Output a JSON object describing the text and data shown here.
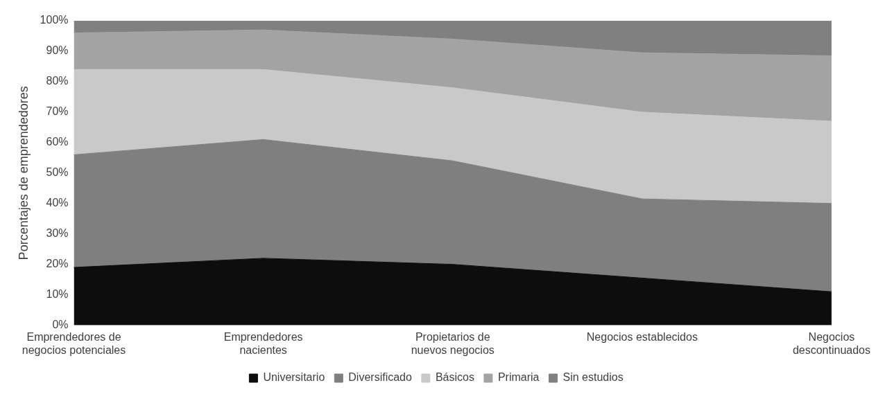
{
  "chart_data": {
    "type": "area",
    "stacked": true,
    "ylabel": "Porcentajes de emprendedores",
    "categories": [
      "Emprendedores de negocios potenciales",
      "Emprendedores nacientes",
      "Propietarios de nuevos negocios",
      "Negocios establecidos",
      "Negocios descontinuados"
    ],
    "series": [
      {
        "name": "Universitario",
        "color": "#0d0d0d",
        "values": [
          19,
          22,
          20,
          15.5,
          11
        ]
      },
      {
        "name": "Diversificado",
        "color": "#7f7f7f",
        "values": [
          37,
          39,
          34,
          26,
          29
        ]
      },
      {
        "name": "Básicos",
        "color": "#c9c9c9",
        "values": [
          28,
          23,
          24,
          28.5,
          27
        ]
      },
      {
        "name": "Primaria",
        "color": "#a3a3a3",
        "values": [
          12,
          13,
          16,
          19.5,
          21.5
        ]
      },
      {
        "name": "Sin estudios",
        "color": "#808080",
        "values": [
          4,
          3,
          6,
          10.5,
          11.5
        ]
      }
    ],
    "ylim": [
      0,
      100
    ],
    "yticks": [
      {
        "value": 0,
        "label": "0%"
      },
      {
        "value": 10,
        "label": "10%"
      },
      {
        "value": 20,
        "label": "20%"
      },
      {
        "value": 30,
        "label": "30%"
      },
      {
        "value": 40,
        "label": "40%"
      },
      {
        "value": 50,
        "label": "50%"
      },
      {
        "value": 60,
        "label": "60%"
      },
      {
        "value": 70,
        "label": "70%"
      },
      {
        "value": 80,
        "label": "80%"
      },
      {
        "value": 90,
        "label": "90%"
      },
      {
        "value": 100,
        "label": "100%"
      }
    ],
    "grid": false,
    "legend": "bottom"
  }
}
